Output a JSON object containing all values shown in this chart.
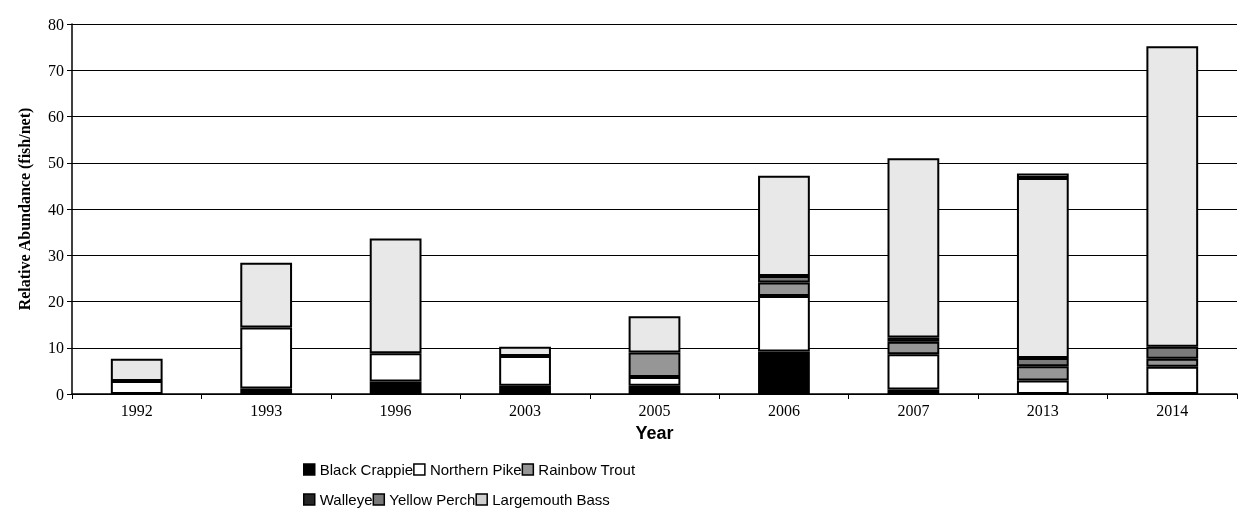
{
  "chart_data": {
    "type": "bar",
    "stacked": true,
    "xlabel": "Year",
    "ylabel": "Relative Abundance (fish/net)",
    "categories": [
      "1992",
      "1993",
      "1996",
      "2003",
      "2005",
      "2006",
      "2007",
      "2013",
      "2014"
    ],
    "series": [
      {
        "name": "Black Crappie",
        "color": "#000000",
        "values": [
          0,
          1.2,
          2.7,
          1.8,
          1.8,
          9.2,
          1.0,
          0,
          0
        ]
      },
      {
        "name": "Northern Pike",
        "color": "#ffffff",
        "values": [
          2.8,
          13.2,
          6.1,
          6.4,
          1.9,
          12.0,
          7.6,
          2.9,
          5.9
        ]
      },
      {
        "name": "Rainbow Trout",
        "color": "#969696",
        "values": [
          0,
          0,
          0,
          0,
          5.3,
          2.9,
          2.7,
          3.1,
          1.7
        ]
      },
      {
        "name": "Walleye",
        "color": "#262626",
        "values": [
          0,
          0,
          0,
          0,
          0,
          0,
          0.9,
          0,
          0
        ]
      },
      {
        "name": "Yellow Perch",
        "color": "#7a7a7a",
        "values": [
          0,
          0,
          0,
          0,
          0,
          1.4,
          0,
          1.8,
          2.6
        ]
      },
      {
        "color": "#e8e8e8",
        "values": [
          4.8,
          14.0,
          24.8,
          2.0,
          7.8,
          21.7,
          38.8,
          38.9,
          65.0
        ]
      },
      {
        "name": "Largemouth Bass",
        "color": "#d0d0d0",
        "values": [
          0,
          0,
          0,
          0,
          0,
          0,
          0,
          1.0,
          0
        ]
      }
    ],
    "ylim": [
      0,
      80
    ],
    "yticks": [
      0,
      10,
      20,
      30,
      40,
      50,
      60,
      70,
      80
    ],
    "grid": "y",
    "legend": "bottom"
  }
}
